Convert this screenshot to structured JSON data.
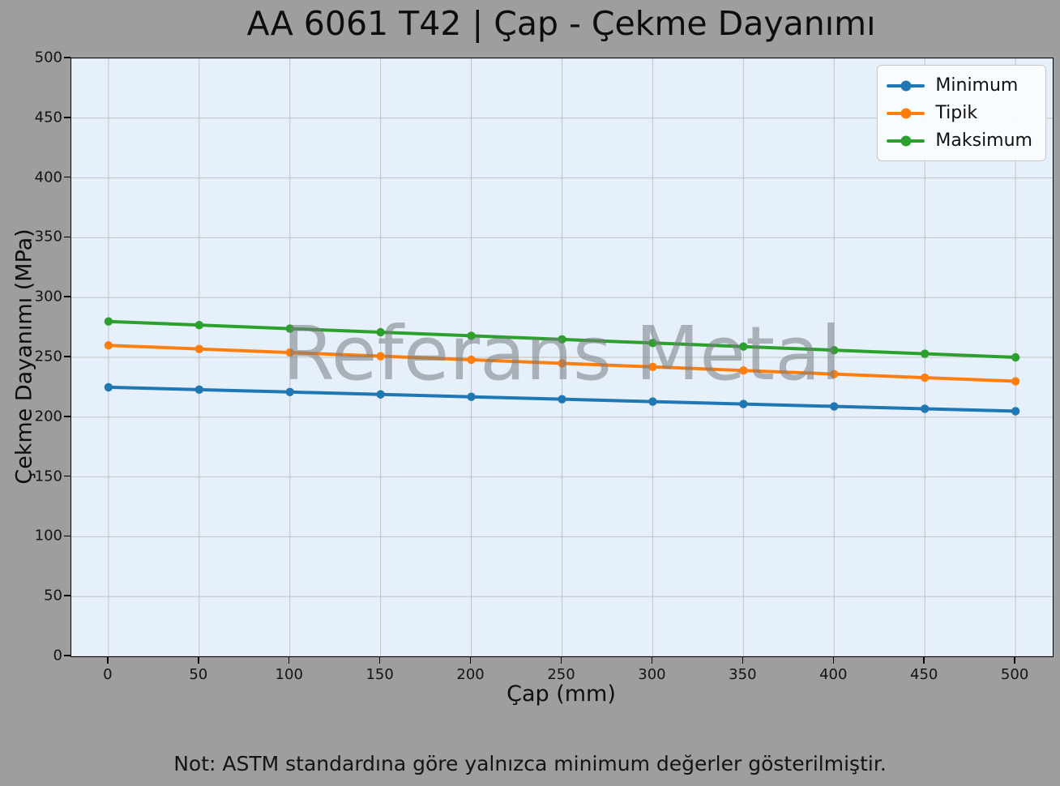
{
  "watermark": "Referans Metal",
  "note": "Not: ASTM standardına göre yalnızca minimum değerler gösterilmiştir.",
  "colors": {
    "figure_bg": "#9e9e9e",
    "plot_bg": "#e6f0fb",
    "grid": "#c2c2c2",
    "spine": "#000000",
    "watermark": "#787c80",
    "minimum": "#1f77b4",
    "tipik": "#ff7f0e",
    "maksimum": "#2ca02c"
  },
  "chart_data": {
    "type": "line",
    "title": "AA 6061 T42 | Çap - Çekme Dayanımı",
    "xlabel": "Çap (mm)",
    "ylabel": "Çekme Dayanımı (MPa)",
    "x": [
      0,
      50,
      100,
      150,
      200,
      250,
      300,
      350,
      400,
      450,
      500
    ],
    "xticks": [
      0,
      50,
      100,
      150,
      200,
      250,
      300,
      350,
      400,
      450,
      500
    ],
    "yticks": [
      0,
      50,
      100,
      150,
      200,
      250,
      300,
      350,
      400,
      450,
      500
    ],
    "xlim": [
      -20.5,
      520.5
    ],
    "ylim": [
      0,
      500
    ],
    "grid": true,
    "legend_position": "upper right",
    "series": [
      {
        "name": "Minimum",
        "color": "#1f77b4",
        "values": [
          225,
          223,
          221,
          219,
          217,
          215,
          213,
          211,
          209,
          207,
          205
        ]
      },
      {
        "name": "Tipik",
        "color": "#ff7f0e",
        "values": [
          260,
          257,
          254,
          251,
          248,
          245,
          242,
          239,
          236,
          233,
          230
        ]
      },
      {
        "name": "Maksimum",
        "color": "#2ca02c",
        "values": [
          280,
          277,
          274,
          271,
          268,
          265,
          262,
          259,
          256,
          253,
          250
        ]
      }
    ]
  }
}
